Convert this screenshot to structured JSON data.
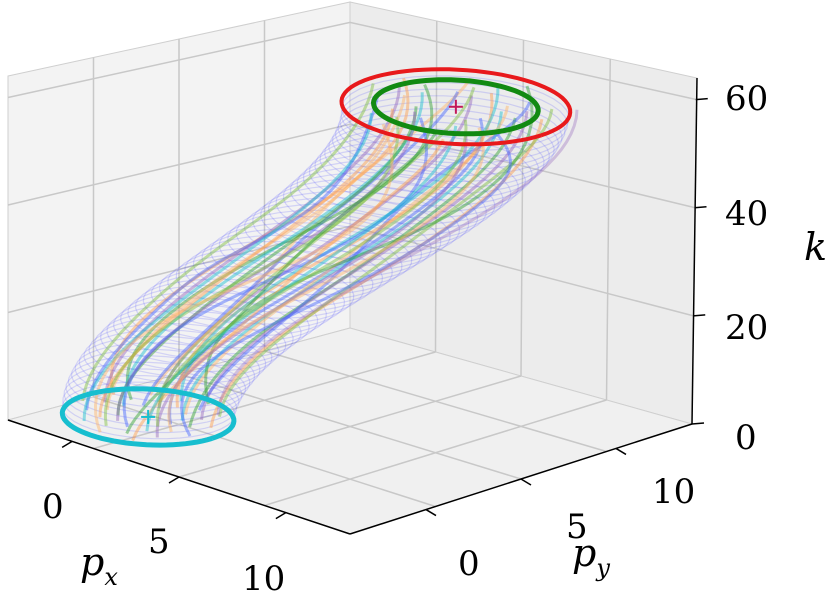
{
  "chart_data": {
    "type": "3d-line",
    "xlabel": "p",
    "xlabel_sub": "x",
    "ylabel": "p",
    "ylabel_sub": "y",
    "zlabel": "k",
    "xticks": [
      "0",
      "5",
      "10"
    ],
    "yticks": [
      "0",
      "5",
      "10"
    ],
    "zticks": [
      "0",
      "20",
      "40",
      "60"
    ],
    "xlim": [
      -3,
      13
    ],
    "ylim": [
      -4,
      14
    ],
    "zlim": [
      0,
      64
    ],
    "grid": true,
    "start_center": {
      "px": 0,
      "py": 0,
      "k": 0
    },
    "end_center": {
      "px": 8,
      "py": 7,
      "k": 60
    },
    "start_circle_radius": 3,
    "end_circle_radius": 4,
    "trajectory_count": 36,
    "outlier_end": {
      "px": 11,
      "py": 10,
      "k": 60
    },
    "colors": {
      "start_circle": "#17becf",
      "end_circle": "#e8191b",
      "end_inner_circle": "#128a12",
      "tube": "#3b3bff",
      "start_marker": "#17becf",
      "end_marker": "#c2185b",
      "trajectories": [
        "#4363ff",
        "#2ca02c",
        "#ff9e4a",
        "#17becf",
        "#9467bd",
        "#7fbf3f",
        "#ffb366"
      ]
    }
  }
}
